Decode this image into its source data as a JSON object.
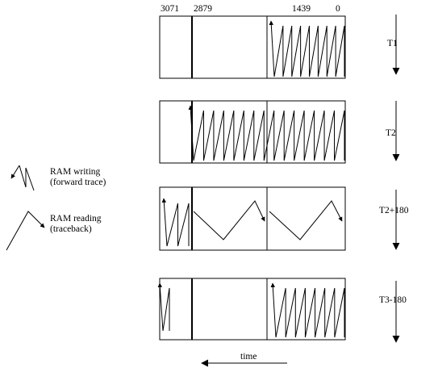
{
  "memory_addresses": {
    "addr_3071": "3071",
    "addr_2879": "2879",
    "addr_1439": "1439",
    "addr_0": "0"
  },
  "stages": [
    {
      "label": "T1"
    },
    {
      "label": "T2"
    },
    {
      "label": "T2+180"
    },
    {
      "label": "T3-180"
    }
  ],
  "legend": {
    "writing": {
      "line1": "RAM writing",
      "line2": "(forward trace)"
    },
    "reading": {
      "line1": "RAM reading",
      "line2": "(traceback)"
    }
  },
  "time_axis": {
    "label": "time"
  },
  "colors": {
    "stroke": "#000000",
    "background": "#ffffff"
  }
}
